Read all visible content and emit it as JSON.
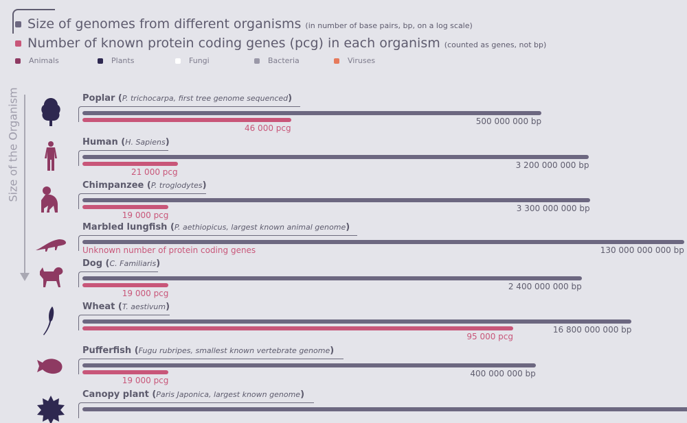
{
  "legend": {
    "genome_size": {
      "label": "Size of genomes from different organisms",
      "note": "(in number of base pairs, bp, on a log scale)",
      "color": "#6c6780"
    },
    "pcg": {
      "label": "Number of known protein coding genes (pcg) in each organism",
      "note": "(counted as genes, not bp)",
      "color": "#c85679"
    },
    "categories": [
      {
        "label": "Animals",
        "color": "#8e3a62"
      },
      {
        "label": "Plants",
        "color": "#2e2850"
      },
      {
        "label": "Fungi",
        "color": "#ffffff"
      },
      {
        "label": "Bacteria",
        "color": "#9a98a8"
      },
      {
        "label": "Viruses",
        "color": "#e67a5c"
      }
    ]
  },
  "axis_label": "Size of the Organism",
  "chart_data": {
    "type": "bar",
    "orientation": "horizontal",
    "genome_scale": "log",
    "categories": [
      "Poplar",
      "Human",
      "Chimpanzee",
      "Marbled lungfish",
      "Dog",
      "Wheat",
      "Pufferfish",
      "Canopy plant"
    ],
    "series": [
      {
        "name": "Size of genomes from different organisms",
        "values": [
          500000000,
          3200000000,
          3300000000,
          130000000000,
          2400000000,
          16800000000,
          400000000,
          null
        ]
      },
      {
        "name": "Number of known protein coding genes (pcg) in each organism",
        "values": [
          46000,
          21000,
          19000,
          null,
          19000,
          95000,
          19000,
          null
        ]
      }
    ],
    "organisms": [
      {
        "name": "Poplar",
        "detail": "P. trichocarpa",
        "extra": ", first tree genome sequenced",
        "kingdom": "Plants",
        "icon": "tree-icon",
        "bp": 500000000,
        "bp_label": "500 000 000 bp",
        "pcg": 46000,
        "pcg_label": "46 000 pcg"
      },
      {
        "name": "Human",
        "detail": "H. Sapiens",
        "extra": "",
        "kingdom": "Animals",
        "icon": "human-icon",
        "bp": 3200000000,
        "bp_label": "3 200 000 000 bp",
        "pcg": 21000,
        "pcg_label": "21 000 pcg"
      },
      {
        "name": "Chimpanzee",
        "detail": "P. troglodytes",
        "extra": "",
        "kingdom": "Animals",
        "icon": "chimpanzee-icon",
        "bp": 3300000000,
        "bp_label": "3 300 000 000 bp",
        "pcg": 19000,
        "pcg_label": "19 000 pcg"
      },
      {
        "name": "Marbled lungfish",
        "detail": "P. aethiopicus",
        "extra": ", largest known animal genome",
        "kingdom": "Animals",
        "icon": "lungfish-icon",
        "bp": 130000000000,
        "bp_label": "130 000 000 000 bp",
        "pcg": null,
        "pcg_label": "Unknown number of protein coding genes"
      },
      {
        "name": "Dog",
        "detail": "C. Familiaris",
        "extra": "",
        "kingdom": "Animals",
        "icon": "dog-icon",
        "bp": 2400000000,
        "bp_label": "2 400 000 000 bp",
        "pcg": 19000,
        "pcg_label": "19 000 pcg"
      },
      {
        "name": "Wheat",
        "detail": "T. aestivum",
        "extra": "",
        "kingdom": "Plants",
        "icon": "wheat-icon",
        "bp": 16800000000,
        "bp_label": "16 800 000 000 bp",
        "pcg": 95000,
        "pcg_label": "95 000 pcg"
      },
      {
        "name": "Pufferfish",
        "detail": "Fugu rubripes",
        "extra": ", smallest known vertebrate genome",
        "kingdom": "Animals",
        "icon": "pufferfish-icon",
        "bp": 400000000,
        "bp_label": "400 000 000 bp",
        "pcg": 19000,
        "pcg_label": "19 000 pcg"
      },
      {
        "name": "Canopy plant",
        "detail": "Paris Japonica",
        "extra": ", largest known genome",
        "kingdom": "Plants",
        "icon": "canopy-plant-icon",
        "bp": null,
        "bp_label": "",
        "pcg": null,
        "pcg_label": ""
      }
    ]
  }
}
